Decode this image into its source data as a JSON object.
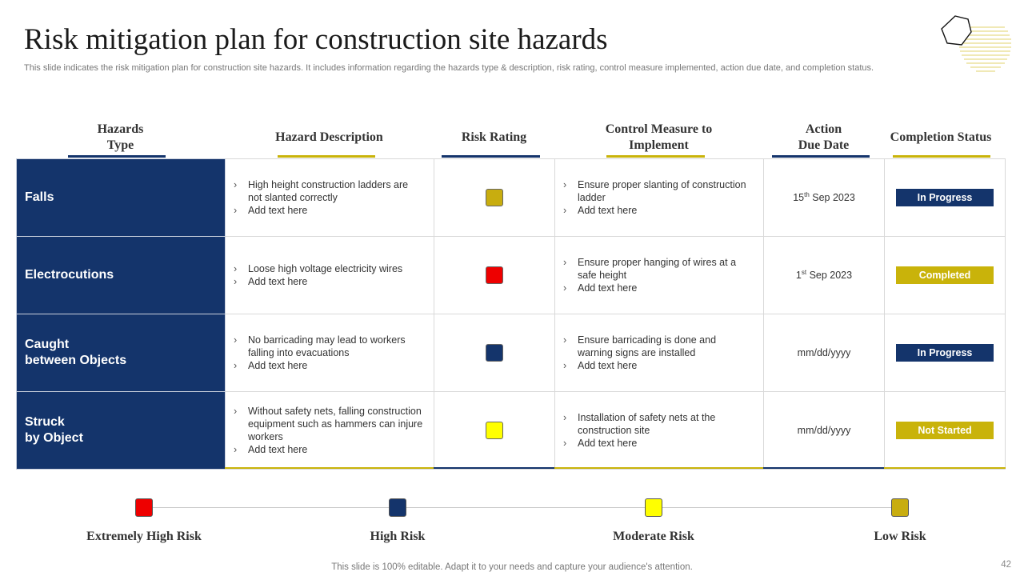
{
  "title": "Risk mitigation plan for construction site hazards",
  "subtitle": "This slide indicates the risk mitigation plan for construction site hazards. It includes information regarding the hazards type & description, risk rating, control measure implemented, action due date, and completion status.",
  "colors": {
    "navy": "#14346b",
    "gold": "#c9b30a",
    "red": "#ee0000",
    "yellow": "#ffff00",
    "olive": "#c8ad0f"
  },
  "headers": {
    "hazard_type": [
      "Hazards",
      "Type"
    ],
    "description": "Hazard Description",
    "risk_rating": "Risk Rating",
    "control": [
      "Control Measure to",
      "Implement"
    ],
    "due_date": [
      "Action",
      "Due Date"
    ],
    "status": "Completion Status"
  },
  "rows": [
    {
      "type": [
        "Falls"
      ],
      "description": [
        "High height construction ladders are not slanted correctly",
        "Add text here"
      ],
      "rating": "Low Risk",
      "rating_color": "#c8ad0f",
      "control": [
        "Ensure proper slanting of construction ladder",
        "Add text here"
      ],
      "due_day": "15",
      "due_suffix": "th",
      "due_rest": " Sep 2023",
      "status": "In Progress",
      "status_color": "#14346b"
    },
    {
      "type": [
        "Electrocutions"
      ],
      "description": [
        "Loose high voltage  electricity wires",
        "Add text here"
      ],
      "rating": "Extremely High Risk",
      "rating_color": "#ee0000",
      "control": [
        "Ensure proper hanging of wires at a safe height",
        "Add text here"
      ],
      "due_day": "1",
      "due_suffix": "st",
      "due_rest": " Sep 2023",
      "status": "Completed",
      "status_color": "#c9b30a"
    },
    {
      "type": [
        "Caught",
        "between Objects"
      ],
      "description": [
        "No barricading may lead to workers falling into evacuations",
        "Add text here"
      ],
      "rating": "High Risk",
      "rating_color": "#14346b",
      "control": [
        "Ensure barricading is done and warning signs are installed",
        "Add text here"
      ],
      "due_day": "",
      "due_suffix": "",
      "due_rest": "mm/dd/yyyy",
      "status": "In Progress",
      "status_color": "#14346b"
    },
    {
      "type": [
        "Struck",
        "by Object"
      ],
      "description": [
        "Without safety nets, falling construction equipment  such as hammers can injure workers",
        "Add text here"
      ],
      "rating": "Moderate Risk",
      "rating_color": "#ffff00",
      "control": [
        "Installation of safety nets at the construction site",
        "Add text here"
      ],
      "due_day": "",
      "due_suffix": "",
      "due_rest": "mm/dd/yyyy",
      "status": "Not Started",
      "status_color": "#c9b30a"
    }
  ],
  "legend": [
    {
      "label": "Extremely High Risk",
      "color": "#ee0000"
    },
    {
      "label": "High Risk",
      "color": "#14346b"
    },
    {
      "label": "Moderate Risk",
      "color": "#ffff00"
    },
    {
      "label": "Low Risk",
      "color": "#c8ad0f"
    }
  ],
  "footer": "This slide is 100% editable. Adapt it to your needs and capture your audience's attention.",
  "page_number": "42"
}
